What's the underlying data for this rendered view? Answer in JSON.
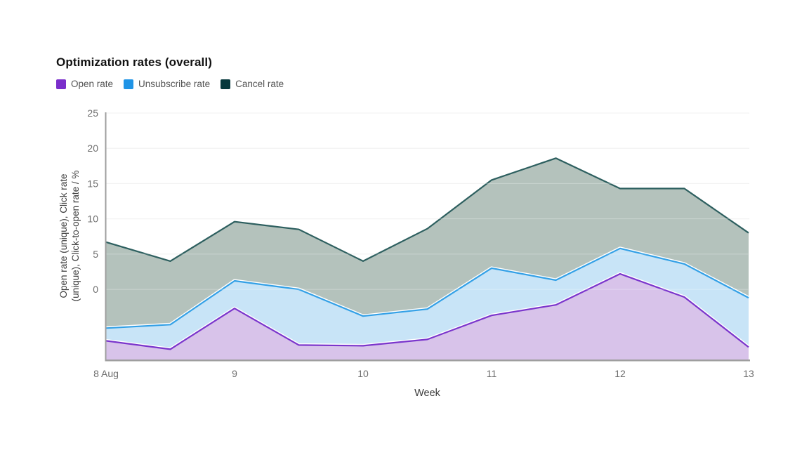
{
  "chart_data": {
    "type": "area",
    "title": "Optimization rates (overall)",
    "xlabel": "Week",
    "ylabel": "Open rate (unique), Click rate (unique), Click-to-open rate / %",
    "ylabel_lines": [
      "Open rate (unique), Click rate",
      "(unique), Click-to-open rate / %"
    ],
    "x": [
      8,
      8.5,
      9,
      9.5,
      10,
      10.5,
      11,
      11.5,
      12,
      12.5,
      13
    ],
    "xticks": [
      8,
      9,
      10,
      11,
      12,
      13
    ],
    "xtick_labels": [
      "8 Aug",
      "9",
      "10",
      "11",
      "12",
      "13"
    ],
    "ylim": [
      -10,
      25
    ],
    "yticks": [
      0,
      5,
      10,
      15,
      20,
      25
    ],
    "grid": true,
    "legend_position": "top-left",
    "series": [
      {
        "name": "Open rate",
        "swatch_color": "#7a2ecb",
        "line_color": "#7a35cc",
        "fill_color": "#d8c3ea",
        "halo": true,
        "values": [
          -7.3,
          -8.5,
          -2.7,
          -7.9,
          -8.0,
          -7.1,
          -3.7,
          -2.2,
          2.2,
          -1.1,
          -8.2
        ]
      },
      {
        "name": "Unsubscribe rate",
        "swatch_color": "#2094e6",
        "line_color": "#33a0e6",
        "fill_color": "#c8e4f7",
        "halo": true,
        "values": [
          -5.5,
          -5.0,
          1.2,
          0.0,
          -3.8,
          -2.8,
          3.0,
          1.3,
          5.8,
          3.6,
          -1.2
        ]
      },
      {
        "name": "Cancel rate",
        "swatch_color": "#05383c",
        "line_color": "#2d5f5f",
        "fill_color": "#b4c2bc",
        "halo": false,
        "values": [
          6.7,
          4.0,
          9.6,
          8.5,
          4.0,
          8.6,
          15.5,
          18.6,
          14.3,
          14.3,
          8.0
        ]
      }
    ],
    "colors": {
      "gridline": "#ececec",
      "gridline_overlay": "rgba(255,255,255,0.30)",
      "axis_line": "#9e9e9e",
      "tick_text": "#6e6e6e",
      "axis_label_text": "#3d3d3d",
      "halo": "#ffffff"
    }
  }
}
